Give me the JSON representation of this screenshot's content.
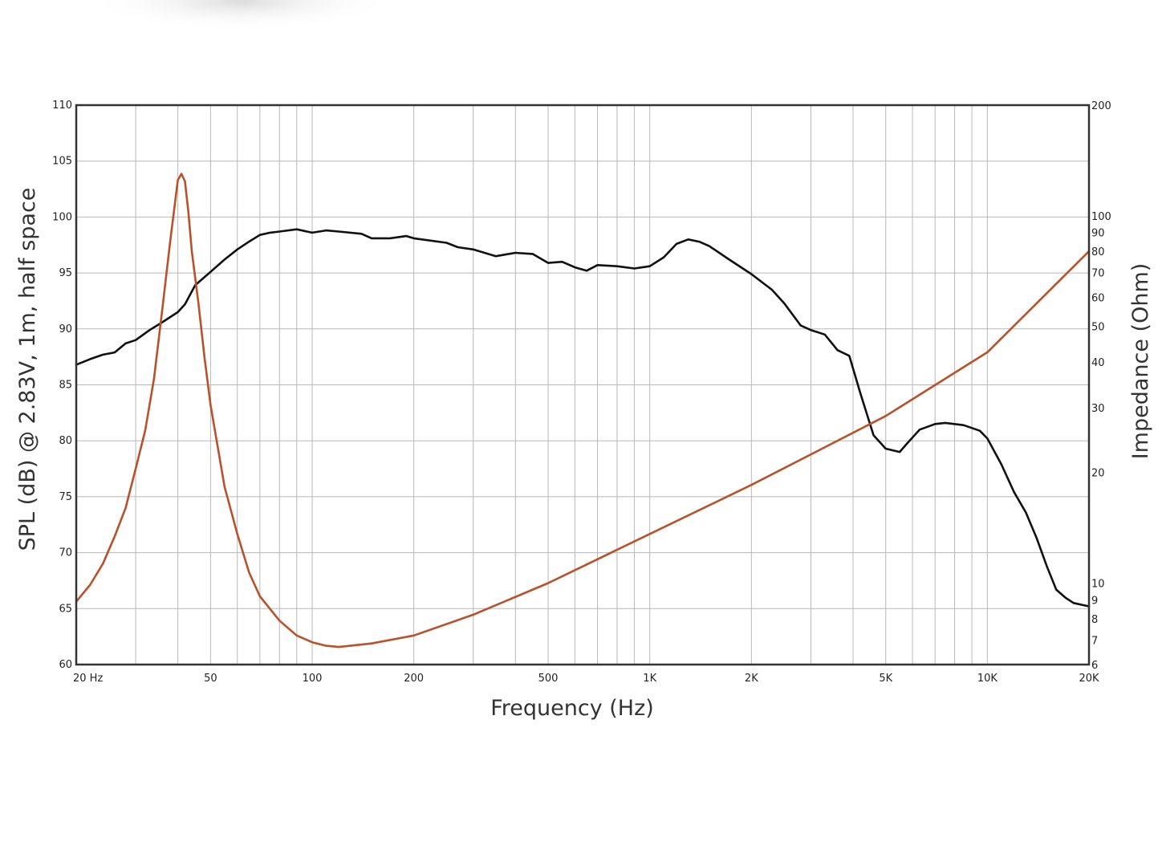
{
  "chart_data": {
    "type": "line",
    "title": "",
    "xlabel": "Frequency (Hz)",
    "ylabel": "SPL (dB) @ 2.83V, 1m, half space",
    "y2label": "Impedance (Ohm)",
    "x_scale": "log",
    "y2_scale": "log",
    "xlim": [
      20,
      20000
    ],
    "ylim": [
      60,
      110
    ],
    "y2lim": [
      6,
      200
    ],
    "grid": true,
    "x_tick_labels": [
      {
        "value": 20,
        "label": "20  Hz"
      },
      {
        "value": 50,
        "label": "50"
      },
      {
        "value": 100,
        "label": "100"
      },
      {
        "value": 200,
        "label": "200"
      },
      {
        "value": 500,
        "label": "500"
      },
      {
        "value": 1000,
        "label": "1K"
      },
      {
        "value": 2000,
        "label": "2K"
      },
      {
        "value": 5000,
        "label": "5K"
      },
      {
        "value": 10000,
        "label": "10K"
      },
      {
        "value": 20000,
        "label": "20K"
      }
    ],
    "y_tick_labels": [
      "60",
      "65",
      "70",
      "75",
      "80",
      "85",
      "90",
      "95",
      "100",
      "105",
      "110"
    ],
    "y2_tick_labels": [
      {
        "value": 6,
        "label": "6"
      },
      {
        "value": 7,
        "label": "7"
      },
      {
        "value": 8,
        "label": "8"
      },
      {
        "value": 9,
        "label": "9"
      },
      {
        "value": 10,
        "label": "10"
      },
      {
        "value": 20,
        "label": "20"
      },
      {
        "value": 30,
        "label": "30"
      },
      {
        "value": 40,
        "label": "40"
      },
      {
        "value": 50,
        "label": "50"
      },
      {
        "value": 60,
        "label": "60"
      },
      {
        "value": 70,
        "label": "70"
      },
      {
        "value": 80,
        "label": "80"
      },
      {
        "value": 90,
        "label": "90"
      },
      {
        "value": 100,
        "label": "100"
      },
      {
        "value": 200,
        "label": "200"
      }
    ],
    "series": [
      {
        "axis": "left",
        "color": "#111111",
        "x": [
          20,
          22,
          24,
          26,
          28,
          30,
          33,
          36,
          40,
          42,
          45,
          50,
          55,
          60,
          65,
          70,
          75,
          80,
          90,
          100,
          110,
          120,
          140,
          150,
          170,
          190,
          200,
          250,
          270,
          300,
          350,
          400,
          450,
          500,
          550,
          600,
          650,
          700,
          800,
          900,
          1000,
          1100,
          1200,
          1300,
          1400,
          1500,
          1700,
          2000,
          2300,
          2500,
          2800,
          3000,
          3300,
          3600,
          3900,
          4200,
          4600,
          5000,
          5500,
          5800,
          6300,
          7000,
          7500,
          8500,
          9500,
          10000,
          11000,
          12000,
          13000,
          14000,
          15000,
          16000,
          17000,
          18000,
          20000
        ],
        "y": [
          86.8,
          87.3,
          87.7,
          87.9,
          88.7,
          89.0,
          89.9,
          90.6,
          91.5,
          92.2,
          93.9,
          95.1,
          96.2,
          97.1,
          97.8,
          98.4,
          98.6,
          98.7,
          98.9,
          98.6,
          98.8,
          98.7,
          98.5,
          98.1,
          98.1,
          98.3,
          98.1,
          97.7,
          97.3,
          97.1,
          96.5,
          96.8,
          96.7,
          95.9,
          96.0,
          95.5,
          95.2,
          95.7,
          95.6,
          95.4,
          95.6,
          96.4,
          97.6,
          98.0,
          97.8,
          97.4,
          96.3,
          94.9,
          93.5,
          92.3,
          90.3,
          89.9,
          89.5,
          88.1,
          87.6,
          84.3,
          80.5,
          79.3,
          79.0,
          79.8,
          81.0,
          81.5,
          81.6,
          81.4,
          80.9,
          80.2,
          77.9,
          75.4,
          73.6,
          71.3,
          68.8,
          66.7,
          66.0,
          65.5,
          65.2
        ]
      },
      {
        "axis": "right",
        "color": "#b9512a",
        "x": [
          20,
          22,
          24,
          26,
          28,
          30,
          32,
          34,
          36,
          38,
          40,
          41,
          42,
          43,
          44,
          46,
          48,
          50,
          55,
          60,
          65,
          70,
          80,
          90,
          100,
          110,
          120,
          150,
          200,
          300,
          500,
          1000,
          2000,
          5000,
          10000,
          20000
        ],
        "y": [
          8.9,
          9.9,
          11.3,
          13.4,
          16.0,
          20.5,
          26.0,
          36.0,
          56.0,
          86.0,
          125.0,
          130.0,
          124.0,
          102.0,
          80.0,
          58.0,
          41.0,
          30.5,
          18.3,
          13.6,
          10.7,
          9.2,
          7.9,
          7.2,
          6.9,
          6.75,
          6.7,
          6.85,
          7.2,
          8.2,
          10.0,
          13.6,
          18.5,
          28.5,
          42.5,
          80.0
        ]
      }
    ]
  }
}
